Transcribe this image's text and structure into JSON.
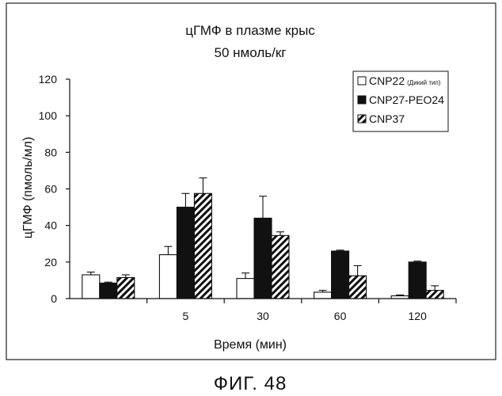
{
  "chart_data": {
    "type": "bar",
    "title": "цГМФ в плазме крыс",
    "subtitle": "50 нмоль/кг",
    "xlabel": "Время (мин)",
    "ylabel": "цГМФ (пмоль/мл)",
    "ylim": [
      0,
      120
    ],
    "yticks": [
      0,
      20,
      40,
      60,
      80,
      100,
      120
    ],
    "categories": [
      "",
      "5",
      "30",
      "60",
      "120"
    ],
    "legend_position": "top-right",
    "series": [
      {
        "name": "CNP22",
        "name_suffix": "(Дикий тип)",
        "fill": "white",
        "values": [
          13,
          24,
          11,
          3.5,
          1.5
        ],
        "errors": [
          1.5,
          4.5,
          3,
          1,
          0.5
        ]
      },
      {
        "name": "CNP27-PEO24",
        "fill": "black",
        "values": [
          8.5,
          50,
          44,
          26,
          20
        ],
        "errors": [
          0.5,
          7.5,
          12,
          0.5,
          0.5
        ]
      },
      {
        "name": "CNP37",
        "fill": "hatched",
        "values": [
          11.5,
          57.5,
          34.5,
          12.5,
          4.5
        ],
        "errors": [
          1.5,
          8.5,
          2,
          5.5,
          2.5
        ]
      }
    ]
  },
  "caption": "ФИГ. 48"
}
